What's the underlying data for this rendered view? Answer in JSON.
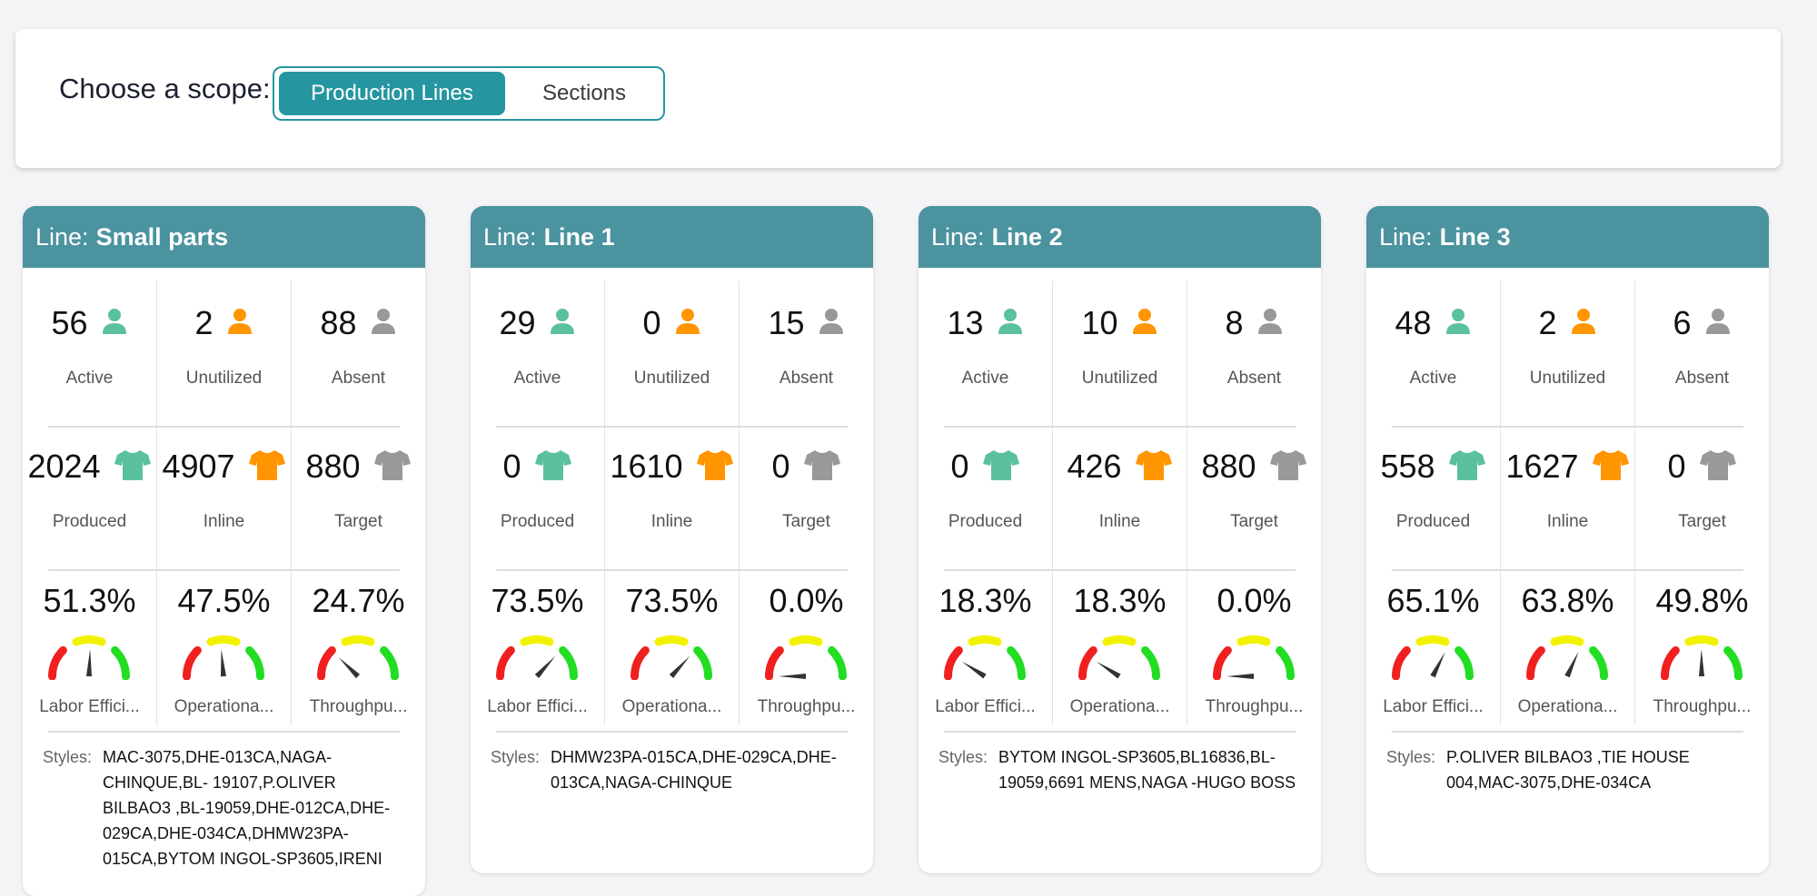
{
  "scope": {
    "label": "Choose a scope:",
    "options": [
      {
        "label": "Production Lines",
        "active": true
      },
      {
        "label": "Sections",
        "active": false
      }
    ]
  },
  "colors": {
    "accent": "#2596a0",
    "header": "#4a939f",
    "active": "#5ac0a0",
    "unutilized": "#ff9500",
    "absent": "#999999",
    "gauge_red": "#f02020",
    "gauge_yellow": "#f2f200",
    "gauge_green": "#22dd22"
  },
  "labels": {
    "line_prefix": "Line:",
    "active": "Active",
    "unutilized": "Unutilized",
    "absent": "Absent",
    "produced": "Produced",
    "inline": "Inline",
    "target": "Target",
    "labor_efficiency": "Labor Effici...",
    "operational": "Operationa...",
    "throughput": "Throughpu...",
    "styles": "Styles:"
  },
  "lines": [
    {
      "name": "Small parts",
      "active": "56",
      "unutilized": "2",
      "absent": "88",
      "produced": "2024",
      "inline": "4907",
      "target": "880",
      "labor_efficiency": "51.3%",
      "labor_efficiency_value": 51.3,
      "operational": "47.5%",
      "operational_value": 47.5,
      "throughput": "24.7%",
      "throughput_value": 24.7,
      "styles": "MAC-3075,DHE-013CA,NAGA-CHINQUE,BL- 19107,P.OLIVER BILBAO3 ,BL-19059,DHE-012CA,DHE-029CA,DHE-034CA,DHMW23PA-015CA,BYTOM INGOL-SP3605,IRENI"
    },
    {
      "name": "Line 1",
      "active": "29",
      "unutilized": "0",
      "absent": "15",
      "produced": "0",
      "inline": "1610",
      "target": "0",
      "labor_efficiency": "73.5%",
      "labor_efficiency_value": 73.5,
      "operational": "73.5%",
      "operational_value": 73.5,
      "throughput": "0.0%",
      "throughput_value": 0.0,
      "styles": "DHMW23PA-015CA,DHE-029CA,DHE-013CA,NAGA-CHINQUE"
    },
    {
      "name": "Line 2",
      "active": "13",
      "unutilized": "10",
      "absent": "8",
      "produced": "0",
      "inline": "426",
      "target": "880",
      "labor_efficiency": "18.3%",
      "labor_efficiency_value": 18.3,
      "operational": "18.3%",
      "operational_value": 18.3,
      "throughput": "0.0%",
      "throughput_value": 0.0,
      "styles": "BYTOM INGOL-SP3605,BL16836,BL-19059,6691 MENS,NAGA -HUGO BOSS"
    },
    {
      "name": "Line 3",
      "active": "48",
      "unutilized": "2",
      "absent": "6",
      "produced": "558",
      "inline": "1627",
      "target": "0",
      "labor_efficiency": "65.1%",
      "labor_efficiency_value": 65.1,
      "operational": "63.8%",
      "operational_value": 63.8,
      "throughput": "49.8%",
      "throughput_value": 49.8,
      "styles": "P.OLIVER BILBAO3 ,TIE HOUSE 004,MAC-3075,DHE-034CA"
    }
  ]
}
